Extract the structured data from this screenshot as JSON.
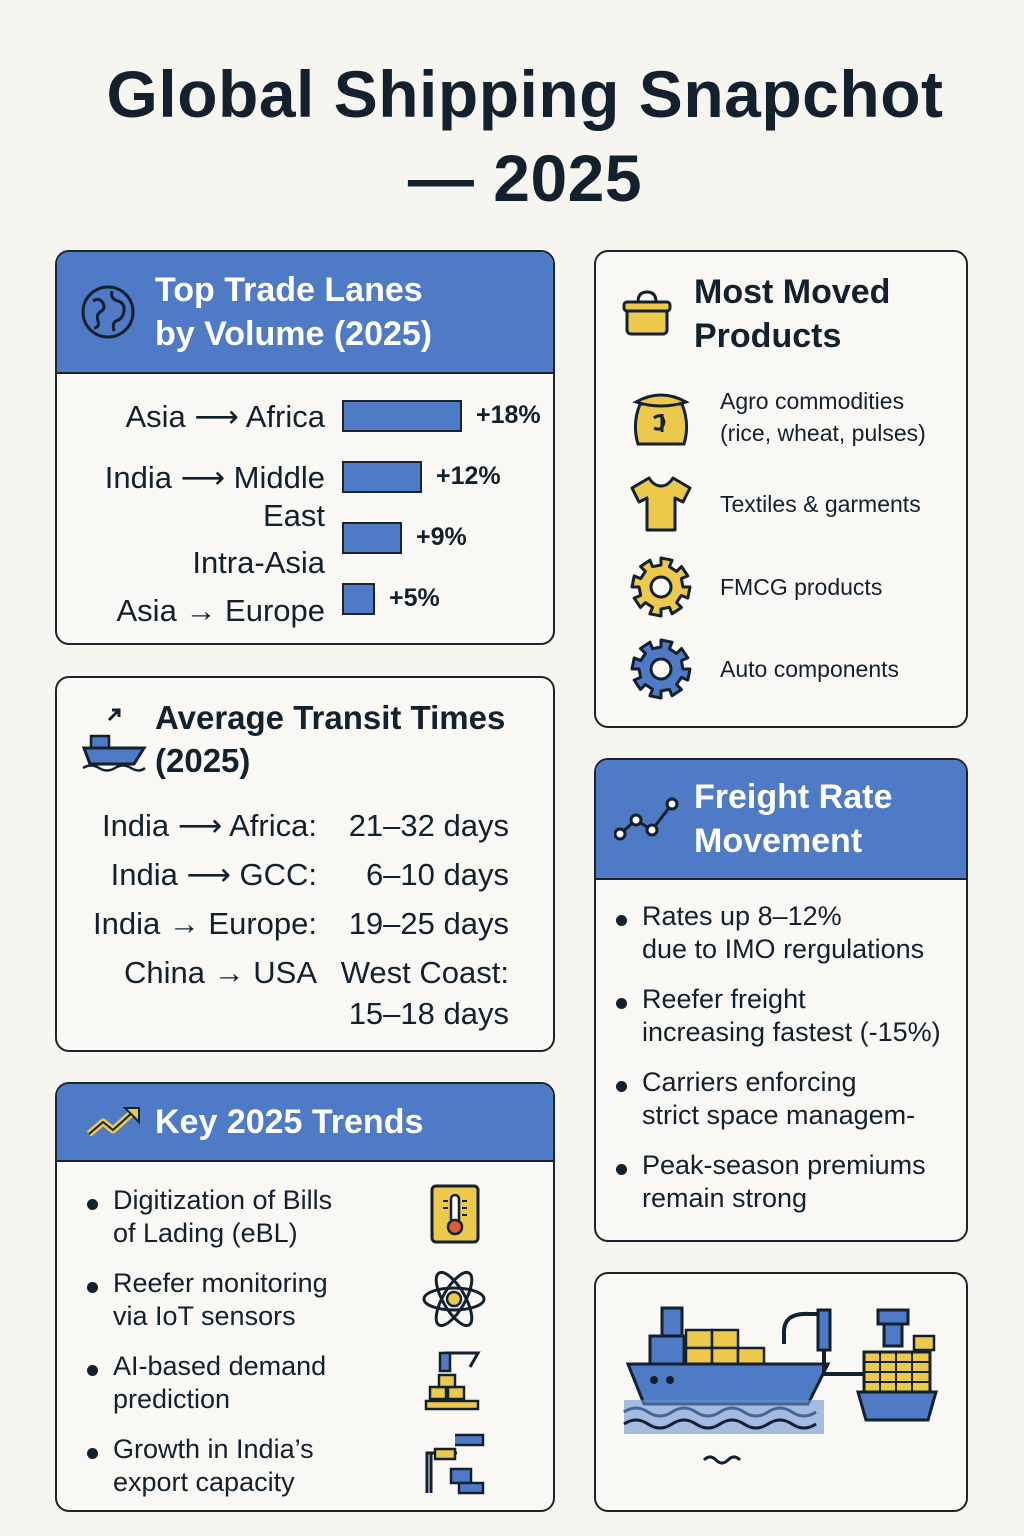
{
  "title": {
    "line1": "Global Shipping Snapchot",
    "line2": "— 2025"
  },
  "colors": {
    "accent": "#4e7ac6",
    "yellow": "#ecc94b",
    "dark": "#13202e"
  },
  "trade_lanes": {
    "heading_line1": "Top Trade Lanes",
    "heading_line2": "by Volume (2025)",
    "icon": "globe-icon",
    "lanes": [
      {
        "label": "Asia ⟶ Africa",
        "growth": "+18%",
        "value": 18
      },
      {
        "label": "India ⟶ Middle East",
        "growth": "+12%",
        "value": 12
      },
      {
        "label": "Intra-Asia",
        "growth": "+9%",
        "value": 9
      },
      {
        "label": "Asia → Europe",
        "growth": "+5%",
        "value": 5
      }
    ]
  },
  "products": {
    "heading_line1": "Most Moved",
    "heading_line2": "Products",
    "icon": "basket-icon",
    "items": [
      {
        "line1": "Agro commodities",
        "line2": "(rice, wheat, pulses)",
        "icon": "grain-sack-icon"
      },
      {
        "line1": "Textiles & garments",
        "line2": "",
        "icon": "tshirt-icon"
      },
      {
        "line1": "FMCG products",
        "line2": "",
        "icon": "gear-yellow-icon"
      },
      {
        "line1": "Auto components",
        "line2": "",
        "icon": "gear-blue-icon"
      }
    ]
  },
  "transit": {
    "heading_line1": "Average Transit Times",
    "heading_line2": "(2025)",
    "icon": "ship-icon",
    "rows": [
      {
        "route": "India ⟶ Africa:",
        "time": "21–32 days"
      },
      {
        "route": "India ⟶ GCC:",
        "time": "6–10 days"
      },
      {
        "route": "India → Europe:",
        "time": "19–25 days"
      },
      {
        "route": "China → USA",
        "time": "West Coast:",
        "time2": "15–18 days"
      }
    ]
  },
  "freight": {
    "heading_line1": "Freight Rate",
    "heading_line2": "Movement",
    "icon": "line-chart-icon",
    "bullets": [
      {
        "line1": "Rates up 8–12%",
        "line2": "due to IMO rergulations"
      },
      {
        "line1": "Reefer freight",
        "line2": "increasing fastest (-15%)"
      },
      {
        "line1": "Carriers enforcing",
        "line2": "strict space managem-"
      },
      {
        "line1": "Peak-season premiums",
        "line2": "remain strong"
      }
    ]
  },
  "trends": {
    "heading": "Key 2025 Trends",
    "icon": "trend-up-icon",
    "bullets": [
      {
        "line1": "Digitization of Bills",
        "line2": "of Lading (eBL)",
        "icon": "thermometer-icon"
      },
      {
        "line1": "Reefer monitoring",
        "line2": "via IoT sensors",
        "icon": "atom-icon"
      },
      {
        "line1": "AI-based demand",
        "line2": "prediction",
        "icon": "crane-boxes-icon"
      },
      {
        "line1": "Growth in India’s",
        "line2": "export capacity",
        "icon": "loading-dock-icon"
      }
    ]
  },
  "illustration": {
    "icon": "port-ship-crane-icon"
  }
}
